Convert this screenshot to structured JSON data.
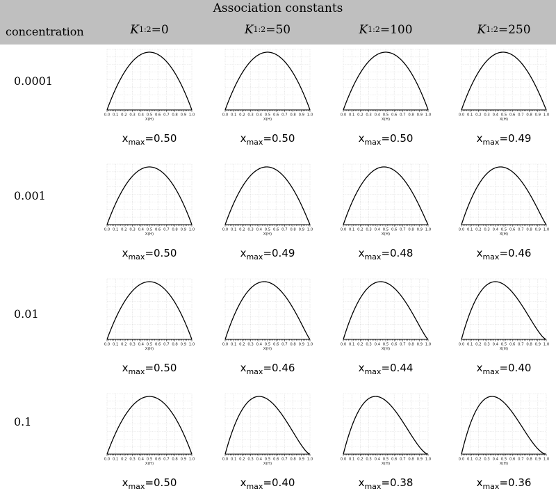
{
  "header": {
    "title": "Association constants",
    "row_header": "concentration",
    "columns": [
      {
        "symbol": "K",
        "sup": "1:2",
        "value": "=0"
      },
      {
        "symbol": "K",
        "sup": "1:2",
        "value": "=50"
      },
      {
        "symbol": "K",
        "sup": "1:2",
        "value": "=100"
      },
      {
        "symbol": "K",
        "sup": "1:2",
        "value": "=250"
      }
    ]
  },
  "rows": [
    {
      "concentration": "0.0001"
    },
    {
      "concentration": "0.001"
    },
    {
      "concentration": "0.01"
    },
    {
      "concentration": "0.1"
    }
  ],
  "chart_data": {
    "type": "line",
    "xlabel": "X(H)",
    "xlim": [
      0,
      1
    ],
    "x_ticks": [
      "0.0",
      "0.1",
      "0.2",
      "0.3",
      "0.4",
      "0.5",
      "0.6",
      "0.7",
      "0.8",
      "0.9",
      "1.0"
    ],
    "grid": true,
    "xmax_label": {
      "base": "x",
      "sub": "max",
      "prefix": "="
    },
    "panels": [
      [
        {
          "xmax": "0.50"
        },
        {
          "xmax": "0.50"
        },
        {
          "xmax": "0.50"
        },
        {
          "xmax": "0.49"
        }
      ],
      [
        {
          "xmax": "0.50"
        },
        {
          "xmax": "0.49"
        },
        {
          "xmax": "0.48"
        },
        {
          "xmax": "0.46"
        }
      ],
      [
        {
          "xmax": "0.50"
        },
        {
          "xmax": "0.46"
        },
        {
          "xmax": "0.44"
        },
        {
          "xmax": "0.40"
        }
      ],
      [
        {
          "xmax": "0.50"
        },
        {
          "xmax": "0.40"
        },
        {
          "xmax": "0.38"
        },
        {
          "xmax": "0.36"
        }
      ]
    ]
  }
}
